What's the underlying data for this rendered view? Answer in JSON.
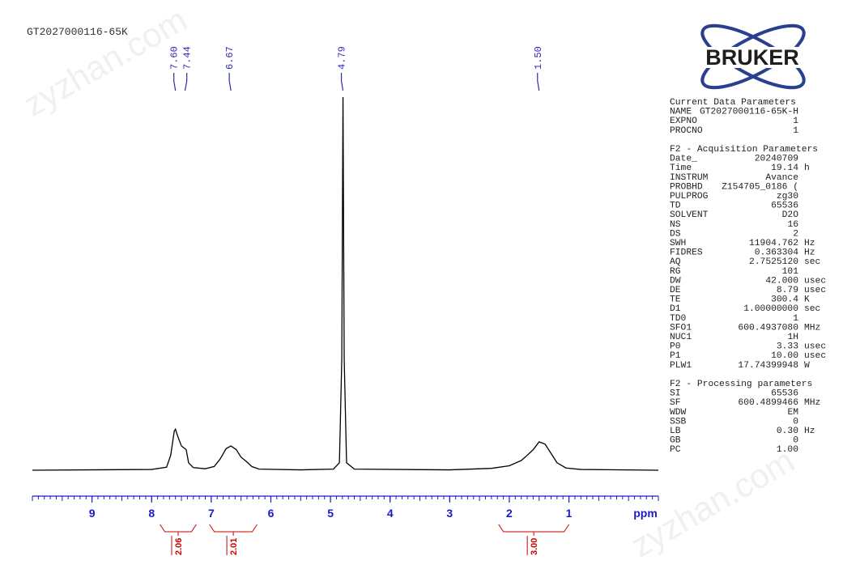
{
  "chart_data": {
    "type": "nmr",
    "title": "GT2027000116-65K",
    "x_label": "ppm",
    "xlim": [
      10,
      -0.5
    ],
    "xticks": [
      9,
      8,
      7,
      6,
      5,
      4,
      3,
      2,
      1
    ],
    "color": "#000000",
    "axis_color": "#1a1acc",
    "x": [
      10,
      8.0,
      7.75,
      7.68,
      7.62,
      7.6,
      7.56,
      7.5,
      7.46,
      7.42,
      7.38,
      7.3,
      7.1,
      6.95,
      6.85,
      6.75,
      6.67,
      6.58,
      6.5,
      6.4,
      6.32,
      6.2,
      5.5,
      4.95,
      4.85,
      4.81,
      4.79,
      4.77,
      4.73,
      4.6,
      3,
      2.3,
      2.0,
      1.8,
      1.7,
      1.6,
      1.5,
      1.4,
      1.3,
      1.2,
      1.05,
      0.8,
      -0.5
    ],
    "values": [
      0,
      0.2,
      0.8,
      4,
      10.5,
      11,
      9,
      6.5,
      6,
      5.5,
      2,
      0.7,
      0.4,
      1,
      3,
      5.8,
      6.5,
      5.5,
      3.5,
      2.2,
      1,
      0.3,
      0.1,
      0.3,
      2,
      30,
      100,
      30,
      2,
      0.3,
      0.1,
      0.5,
      1.2,
      2.6,
      4,
      5.5,
      7.6,
      7,
      4.5,
      2,
      0.6,
      0.2,
      0
    ],
    "peaks": [
      {
        "value": 7.6,
        "label": "7.60"
      },
      7.44,
      6.67,
      4.79,
      {
        "value": 1.5,
        "label": "1.50"
      }
    ],
    "peak_color": "#2a2ab0",
    "integrals": [
      {
        "from": 7.86,
        "to": 7.25,
        "value": 2.06
      },
      {
        "from": 7.03,
        "to": 6.23,
        "value": 2.01
      },
      {
        "from": 2.18,
        "to": 1.0,
        "value": {
          "value": 3,
          "label": "3.00"
        }
      }
    ],
    "integral_color": "#cc0000"
  },
  "logo": "BRUKER",
  "watermark": "zyzhan.com",
  "parameters": [
    {
      "title": "Current Data Parameters",
      "rows": [
        {
          "name": "NAME",
          "value": "GT2027000116-65K-H"
        },
        {
          "name": "EXPNO",
          "value": "1"
        },
        {
          "name": "PROCNO",
          "value": "1"
        }
      ]
    },
    {
      "title": "F2 - Acquisition Parameters",
      "rows": [
        {
          "name": "Date_",
          "value": "20240709"
        },
        {
          "name": "Time",
          "value": "19.14",
          "unit": "h"
        },
        {
          "name": "INSTRUM",
          "value": "Avance"
        },
        {
          "name": "PROBHD",
          "value": "Z154705_0186 ("
        },
        {
          "name": "PULPROG",
          "value": "zg30"
        },
        {
          "name": "TD",
          "value": "65536"
        },
        {
          "name": "SOLVENT",
          "value": "D2O"
        },
        {
          "name": "NS",
          "value": "16"
        },
        {
          "name": "DS",
          "value": "2"
        },
        {
          "name": "SWH",
          "value": "11904.762",
          "unit": "Hz"
        },
        {
          "name": "FIDRES",
          "value": "0.363304",
          "unit": "Hz"
        },
        {
          "name": "AQ",
          "value": "2.7525120",
          "unit": "sec"
        },
        {
          "name": "RG",
          "value": "101"
        },
        {
          "name": "DW",
          "value": "42.000",
          "unit": "usec"
        },
        {
          "name": "DE",
          "value": "8.79",
          "unit": "usec"
        },
        {
          "name": "TE",
          "value": "300.4",
          "unit": "K"
        },
        {
          "name": "D1",
          "value": "1.00000000",
          "unit": "sec"
        },
        {
          "name": "TD0",
          "value": "1"
        },
        {
          "name": "SFO1",
          "value": "600.4937080",
          "unit": "MHz"
        },
        {
          "name": "NUC1",
          "value": "1H"
        },
        {
          "name": "P0",
          "value": "3.33",
          "unit": "usec"
        },
        {
          "name": "P1",
          "value": "10.00",
          "unit": "usec"
        },
        {
          "name": "PLW1",
          "value": "17.74399948",
          "unit": "W"
        }
      ]
    },
    {
      "title": "F2 - Processing parameters",
      "rows": [
        {
          "name": "SI",
          "value": "65536"
        },
        {
          "name": "SF",
          "value": "600.4899466",
          "unit": "MHz"
        },
        {
          "name": "WDW",
          "value": "EM"
        },
        {
          "name": "SSB",
          "value": "0"
        },
        {
          "name": "LB",
          "value": "0.30",
          "unit": "Hz"
        },
        {
          "name": "GB",
          "value": "0"
        },
        {
          "name": "PC",
          "value": "1.00"
        }
      ]
    }
  ]
}
